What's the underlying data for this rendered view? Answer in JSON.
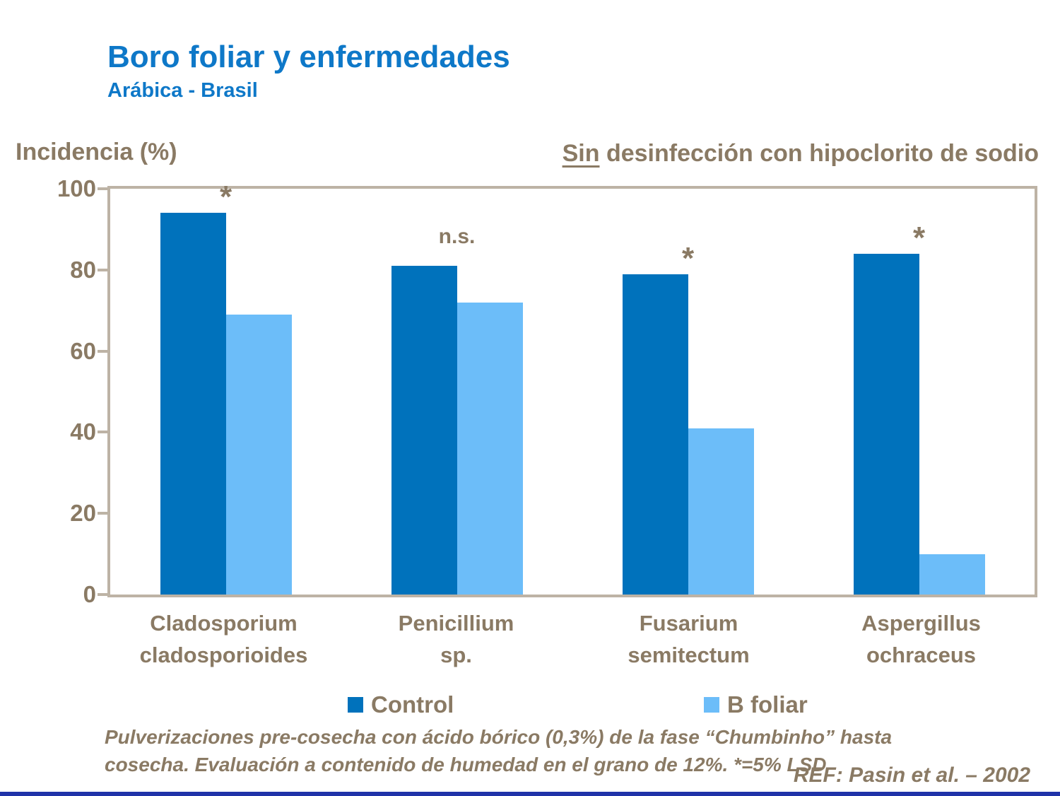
{
  "slide": {
    "title": "Boro foliar y enfermedades",
    "subtitle": "Arábica - Brasil",
    "header": {
      "underlined": "Sin",
      "rest": " desinfección con hipoclorito de sodio"
    },
    "footnote_lines": [
      "Pulverizaciones pre-cosecha con ácido bórico (0,3%) de la fase “Chumbinho” hasta",
      "cosecha. Evaluación a contenido de humedad en el grano de 12%. *=5% LSD"
    ],
    "reference": "REF: Pasin et al. – 2002"
  },
  "colors": {
    "title_blue": "#0E78C8",
    "text_brown": "#8A7A64",
    "axis_tan": "#BDB3A5",
    "control_blue": "#0072BC",
    "bfoliar_blue": "#6CBDF9",
    "bottom_bar_blue": "#2033A8"
  },
  "chart_data": {
    "type": "bar",
    "title": "Boro foliar y enfermedades",
    "ylabel": "Incidencia (%)",
    "xlabel": "",
    "ylim": [
      0,
      100
    ],
    "yticks": [
      0,
      20,
      40,
      60,
      80,
      100
    ],
    "grid": false,
    "legend_position": "bottom",
    "categories": [
      "Cladosporium cladosporioides",
      "Penicillium sp.",
      "Fusarium semitectum",
      "Aspergillus ochraceus"
    ],
    "category_lines": [
      [
        "Cladosporium",
        "cladosporioides"
      ],
      [
        "Penicillium",
        "sp."
      ],
      [
        "Fusarium",
        "semitectum"
      ],
      [
        "Aspergillus",
        "ochraceus"
      ]
    ],
    "series": [
      {
        "name": "Control",
        "color": "#0072BC",
        "values": [
          94,
          81,
          79,
          84
        ]
      },
      {
        "name": "B foliar",
        "color": "#6CBDF9",
        "values": [
          69,
          72,
          41,
          10
        ]
      }
    ],
    "annotations": [
      {
        "text": "*",
        "dy": 0
      },
      {
        "text": "n.s.",
        "dy": 26
      },
      {
        "text": "*",
        "dy": 0
      },
      {
        "text": "*",
        "dy": 0
      }
    ]
  }
}
